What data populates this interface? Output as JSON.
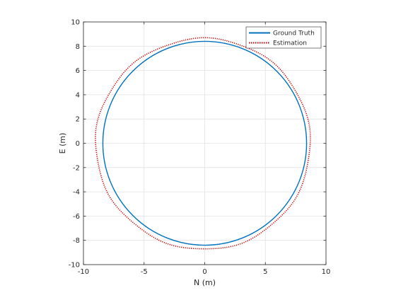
{
  "chart_data": {
    "type": "line",
    "title": "",
    "xlabel": "N (m)",
    "ylabel": "E (m)",
    "xlim": [
      -10,
      10
    ],
    "ylim": [
      -10,
      10
    ],
    "xticks": [
      -10,
      -5,
      0,
      5,
      10
    ],
    "yticks": [
      -10,
      -8,
      -6,
      -4,
      -2,
      0,
      2,
      4,
      6,
      8,
      10
    ],
    "grid": true,
    "legend_position": "top-right",
    "series": [
      {
        "name": "Ground Truth",
        "color": "#0072BD",
        "style": "solid",
        "shape": "circle",
        "center": [
          0,
          0
        ],
        "radius": 8.4
      },
      {
        "name": "Estimation",
        "color": "#CC0000",
        "style": "dotted",
        "shape": "circle",
        "center": [
          0,
          0
        ],
        "radius_y_top": 8.65,
        "radius_y_bottom": 8.75,
        "radius_x_left": 9.0,
        "radius_x_right": 8.7
      }
    ]
  }
}
